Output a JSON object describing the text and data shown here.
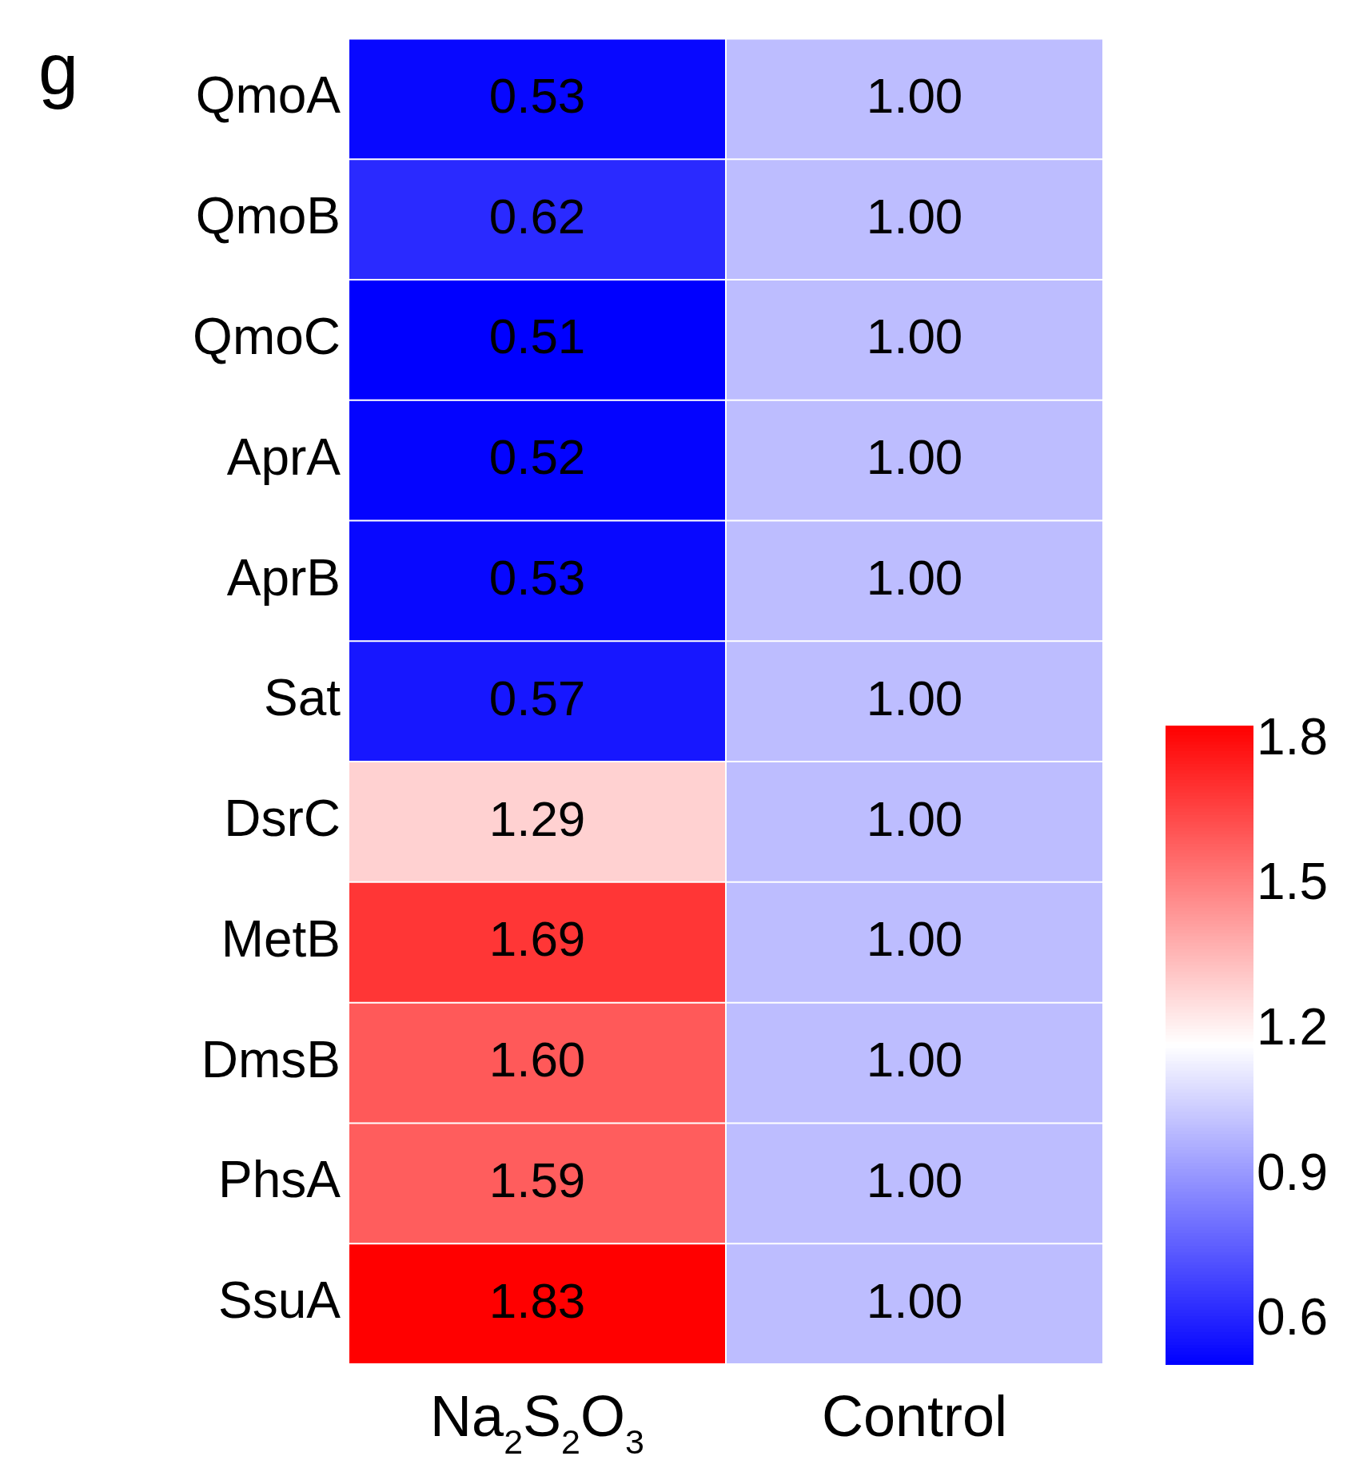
{
  "chart_data": {
    "type": "heatmap",
    "annotations": [
      "g"
    ],
    "categories": [
      "Na$_{2}$S$_{2}$O$_{3}$",
      "Control"
    ],
    "y_categories": [
      "QmoA",
      "QmoB",
      "QmoC",
      "AprA",
      "AprB",
      "Sat",
      "DsrC",
      "MetB",
      "DmsB",
      "PhsA",
      "SsuA"
    ],
    "cells": [
      [
        0.53,
        1.0
      ],
      [
        0.62,
        1.0
      ],
      [
        0.51,
        1.0
      ],
      [
        0.52,
        1.0
      ],
      [
        0.53,
        1.0
      ],
      [
        0.57,
        1.0
      ],
      [
        1.29,
        1.0
      ],
      [
        1.69,
        1.0
      ],
      [
        1.6,
        1.0
      ],
      [
        1.59,
        1.0
      ],
      [
        1.83,
        1.0
      ]
    ],
    "cell_labels": [
      [
        "0.53",
        "1.00"
      ],
      [
        "0.62",
        "1.00"
      ],
      [
        "0.51",
        "1.00"
      ],
      [
        "0.52",
        "1.00"
      ],
      [
        "0.53",
        "1.00"
      ],
      [
        "0.57",
        "1.00"
      ],
      [
        "1.29",
        "1.00"
      ],
      [
        "1.69",
        "1.00"
      ],
      [
        "1.60",
        "1.00"
      ],
      [
        "1.59",
        "1.00"
      ],
      [
        "1.83",
        "1.00"
      ]
    ],
    "clim": [
      0.51,
      1.83
    ],
    "cticks": [
      0.6,
      0.9,
      1.2,
      1.5,
      1.8
    ]
  }
}
